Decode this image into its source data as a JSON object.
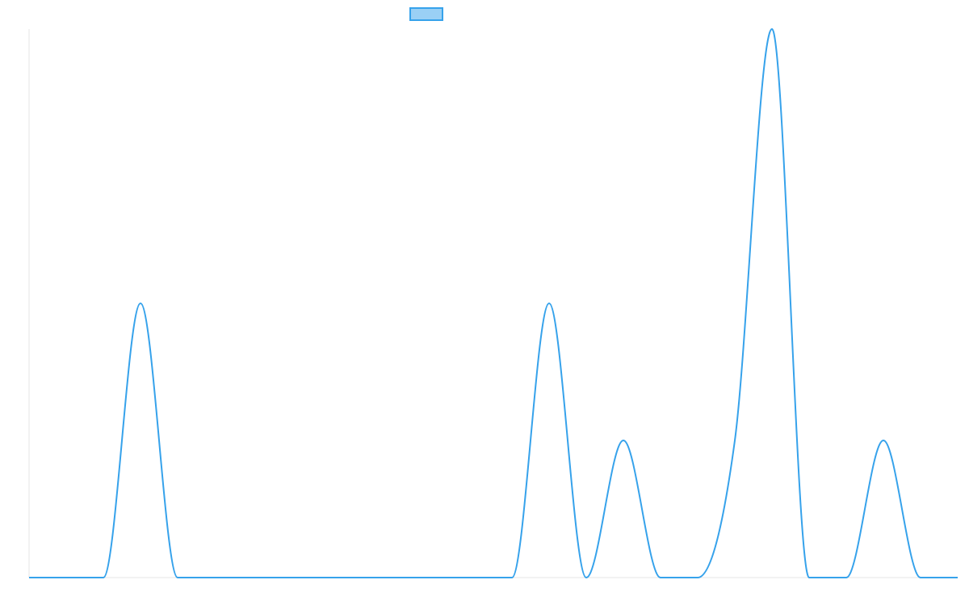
{
  "chart_data": {
    "type": "line",
    "title": "",
    "xlabel": "",
    "ylabel": "",
    "grid": false,
    "legend": {
      "position": "top-center",
      "entries": [
        {
          "label": ""
        }
      ]
    },
    "x": [
      0,
      1,
      2,
      3,
      4,
      5,
      6,
      7,
      8,
      9,
      10,
      11,
      12,
      13,
      14,
      15,
      16,
      17,
      18,
      19,
      20,
      21,
      22,
      23,
      24,
      25
    ],
    "series": [
      {
        "name": "",
        "values": [
          0,
          0,
          0,
          2,
          0,
          0,
          0,
          0,
          0,
          0,
          0,
          0,
          0,
          0,
          2,
          0,
          1,
          0,
          0,
          1,
          4,
          0,
          0,
          1,
          0,
          0
        ]
      }
    ],
    "xlim": [
      0,
      25
    ],
    "ylim": [
      0,
      4
    ],
    "colors": {
      "line": "#36a2eb",
      "legend_fill": "#9ad0f5",
      "axis": "#e6e6e6"
    }
  }
}
